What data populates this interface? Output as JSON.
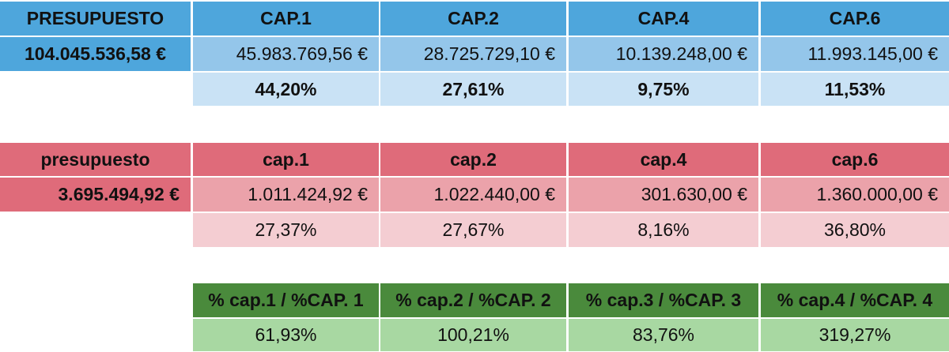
{
  "colors": {
    "blue_header": "#4ea6dc",
    "blue_value": "#94c6ea",
    "blue_pct": "#c9e2f5",
    "red_header": "#df6b7a",
    "red_value": "#eba2aa",
    "red_pct": "#f4cdd2",
    "green_header": "#4a8a3c",
    "green_value": "#a8d8a2"
  },
  "table1": {
    "label": "PRESUPUESTO",
    "total": "104.045.536,58 €",
    "headers": [
      "CAP.1",
      "CAP.2",
      "CAP.4",
      "CAP.6"
    ],
    "values": [
      "45.983.769,56 €",
      "28.725.729,10 €",
      "10.139.248,00 €",
      "11.993.145,00 €"
    ],
    "percents": [
      "44,20%",
      "27,61%",
      "9,75%",
      "11,53%"
    ]
  },
  "table2": {
    "label": "presupuesto",
    "total": "3.695.494,92 €",
    "headers": [
      "cap.1",
      "cap.2",
      "cap.4",
      "cap.6"
    ],
    "values": [
      "1.011.424,92 €",
      "1.022.440,00 €",
      "301.630,00 €",
      "1.360.000,00 €"
    ],
    "percents": [
      "27,37%",
      "27,67%",
      "8,16%",
      "36,80%"
    ]
  },
  "table3": {
    "headers": [
      "% cap.1 / %CAP. 1",
      "% cap.2 / %CAP. 2",
      "% cap.3 / %CAP. 3",
      "% cap.4 / %CAP. 4"
    ],
    "values": [
      "61,93%",
      "100,21%",
      "83,76%",
      "319,27%"
    ]
  }
}
